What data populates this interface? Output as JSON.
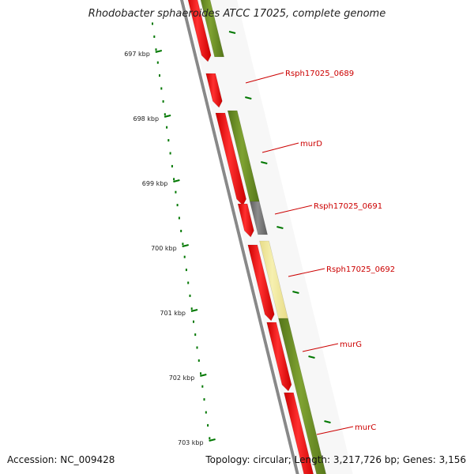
{
  "title": "Rhodobacter sphaeroides ATCC 17025, complete genome",
  "accession": "Accession: NC_009428",
  "summary": "Topology: circular; Length: 3,217,726 bp; Genes: 3,156",
  "colors": {
    "background": "#ffffff",
    "backbone": "#888888",
    "cds_forward": "#ff0000",
    "cog_olive": "#6b8e23",
    "cog_gray": "#777777",
    "cog_pale_yellow": "#f0e68c",
    "tick_green": "#007700",
    "label_red": "#cc0000",
    "kbp_label": "#222222"
  },
  "ruler": {
    "unit": "kbp",
    "labels": [
      "697 kbp",
      "698 kbp",
      "699 kbp",
      "700 kbp",
      "701 kbp",
      "702 kbp",
      "703 kbp"
    ]
  },
  "gene_labels": [
    {
      "name": "Rsph17025_0689",
      "cog_color": "none"
    },
    {
      "name": "murD",
      "cog_color": "olive"
    },
    {
      "name": "Rsph17025_0691",
      "cog_color": "gray"
    },
    {
      "name": "Rsph17025_0692",
      "cog_color": "pale-yellow"
    },
    {
      "name": "murG",
      "cog_color": "olive"
    },
    {
      "name": "murC",
      "cog_color": "olive"
    }
  ]
}
